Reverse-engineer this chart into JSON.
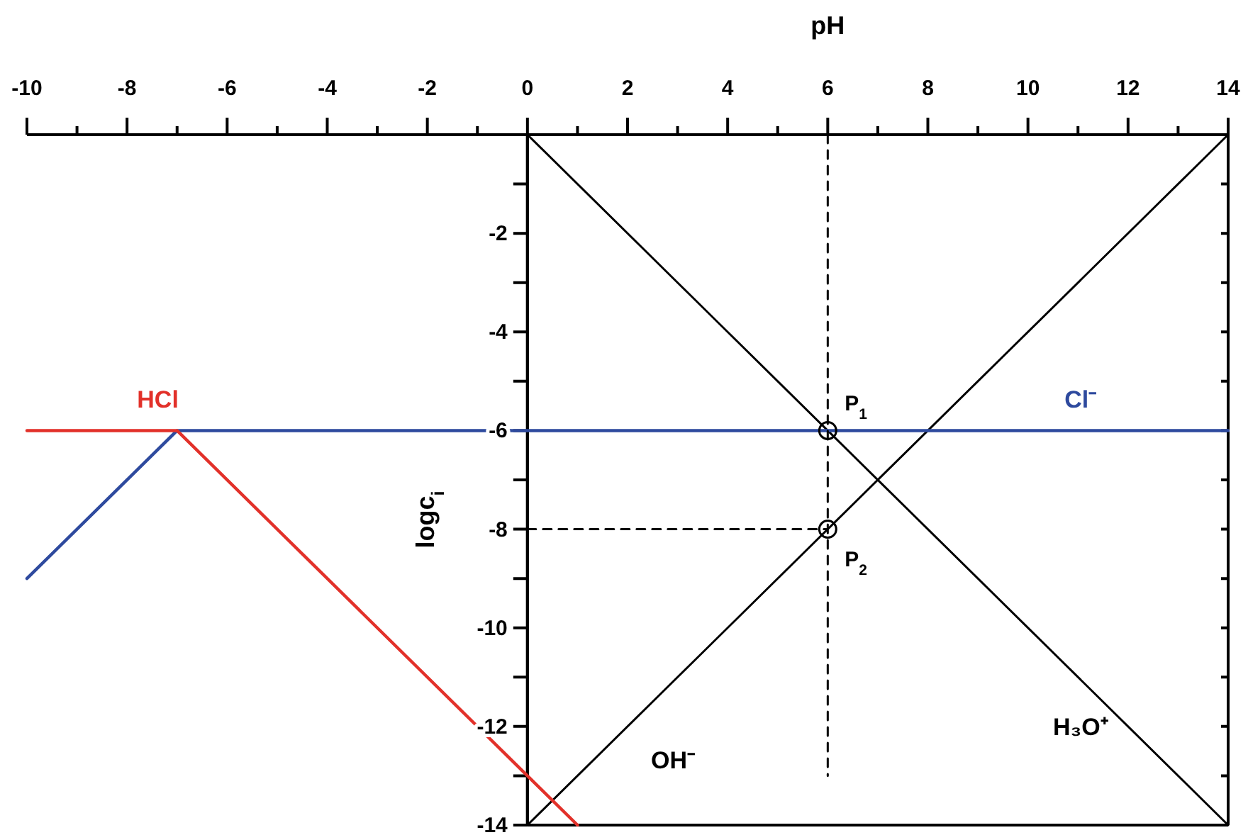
{
  "chart_data": {
    "type": "line",
    "xlabel": "pH",
    "ylabel": "logc$_{i}$",
    "xlim": [
      -10,
      14
    ],
    "ylim": [
      -14,
      0
    ],
    "xticks": [
      -10,
      {
        "value": -9,
        "label": null
      },
      -8,
      {
        "value": -7,
        "label": null
      },
      -6,
      {
        "value": -5,
        "label": null
      },
      -4,
      {
        "value": -3,
        "label": null
      },
      -2,
      {
        "value": -1,
        "label": null
      },
      0,
      {
        "value": 1,
        "label": null
      },
      2,
      {
        "value": 3,
        "label": null
      },
      4,
      {
        "value": 5,
        "label": null
      },
      6,
      {
        "value": 7,
        "label": null
      },
      8,
      {
        "value": 9,
        "label": null
      },
      10,
      {
        "value": 11,
        "label": null
      },
      12,
      {
        "value": 13,
        "label": null
      },
      14
    ],
    "yticks": [
      {
        "value": 0,
        "label": null
      },
      {
        "value": -1,
        "label": null
      },
      -2,
      {
        "value": -3,
        "label": null
      },
      -4,
      {
        "value": -5,
        "label": null
      },
      -6,
      {
        "value": -7,
        "label": null
      },
      -8,
      {
        "value": -9,
        "label": null
      },
      -10,
      {
        "value": -11,
        "label": null
      },
      -12,
      {
        "value": -13,
        "label": null
      },
      -14
    ],
    "grid": false,
    "legend": false,
    "marker": "none",
    "line_style": "solid",
    "series": [
      {
        "name": "H₃O⁺",
        "color": "#000000",
        "x": [
          0,
          14
        ],
        "values": [
          0,
          -14
        ]
      },
      {
        "name": "OH⁻",
        "color": "#000000",
        "x": [
          0,
          14
        ],
        "values": [
          -14,
          0
        ]
      },
      {
        "name": "Cl⁻",
        "color": "#2e4a9e",
        "x": [
          -10,
          -7,
          14
        ],
        "values": [
          -9,
          -6,
          -6
        ]
      },
      {
        "name": "HCl",
        "color": "#e2312a",
        "x": [
          -10,
          -7,
          1
        ],
        "values": [
          -6,
          -6,
          -14
        ]
      },
      {
        "color": "#000000",
        "x": [
          6,
          6
        ],
        "values": [
          0,
          -13
        ],
        "line_style": "dashed"
      },
      {
        "color": "#000000",
        "x": [
          0,
          6
        ],
        "values": [
          -8,
          -8
        ],
        "line_style": "dashed"
      },
      {
        "type": "scatter",
        "color": "#000000",
        "x": [
          6,
          6
        ],
        "values": [
          -6,
          -8
        ],
        "marker": "circle"
      }
    ],
    "annotations": [
      {
        "text": "P$_{1}$",
        "x": 6,
        "y": -6
      },
      {
        "text": "P$_{2}$",
        "x": 6,
        "y": -8
      }
    ]
  }
}
